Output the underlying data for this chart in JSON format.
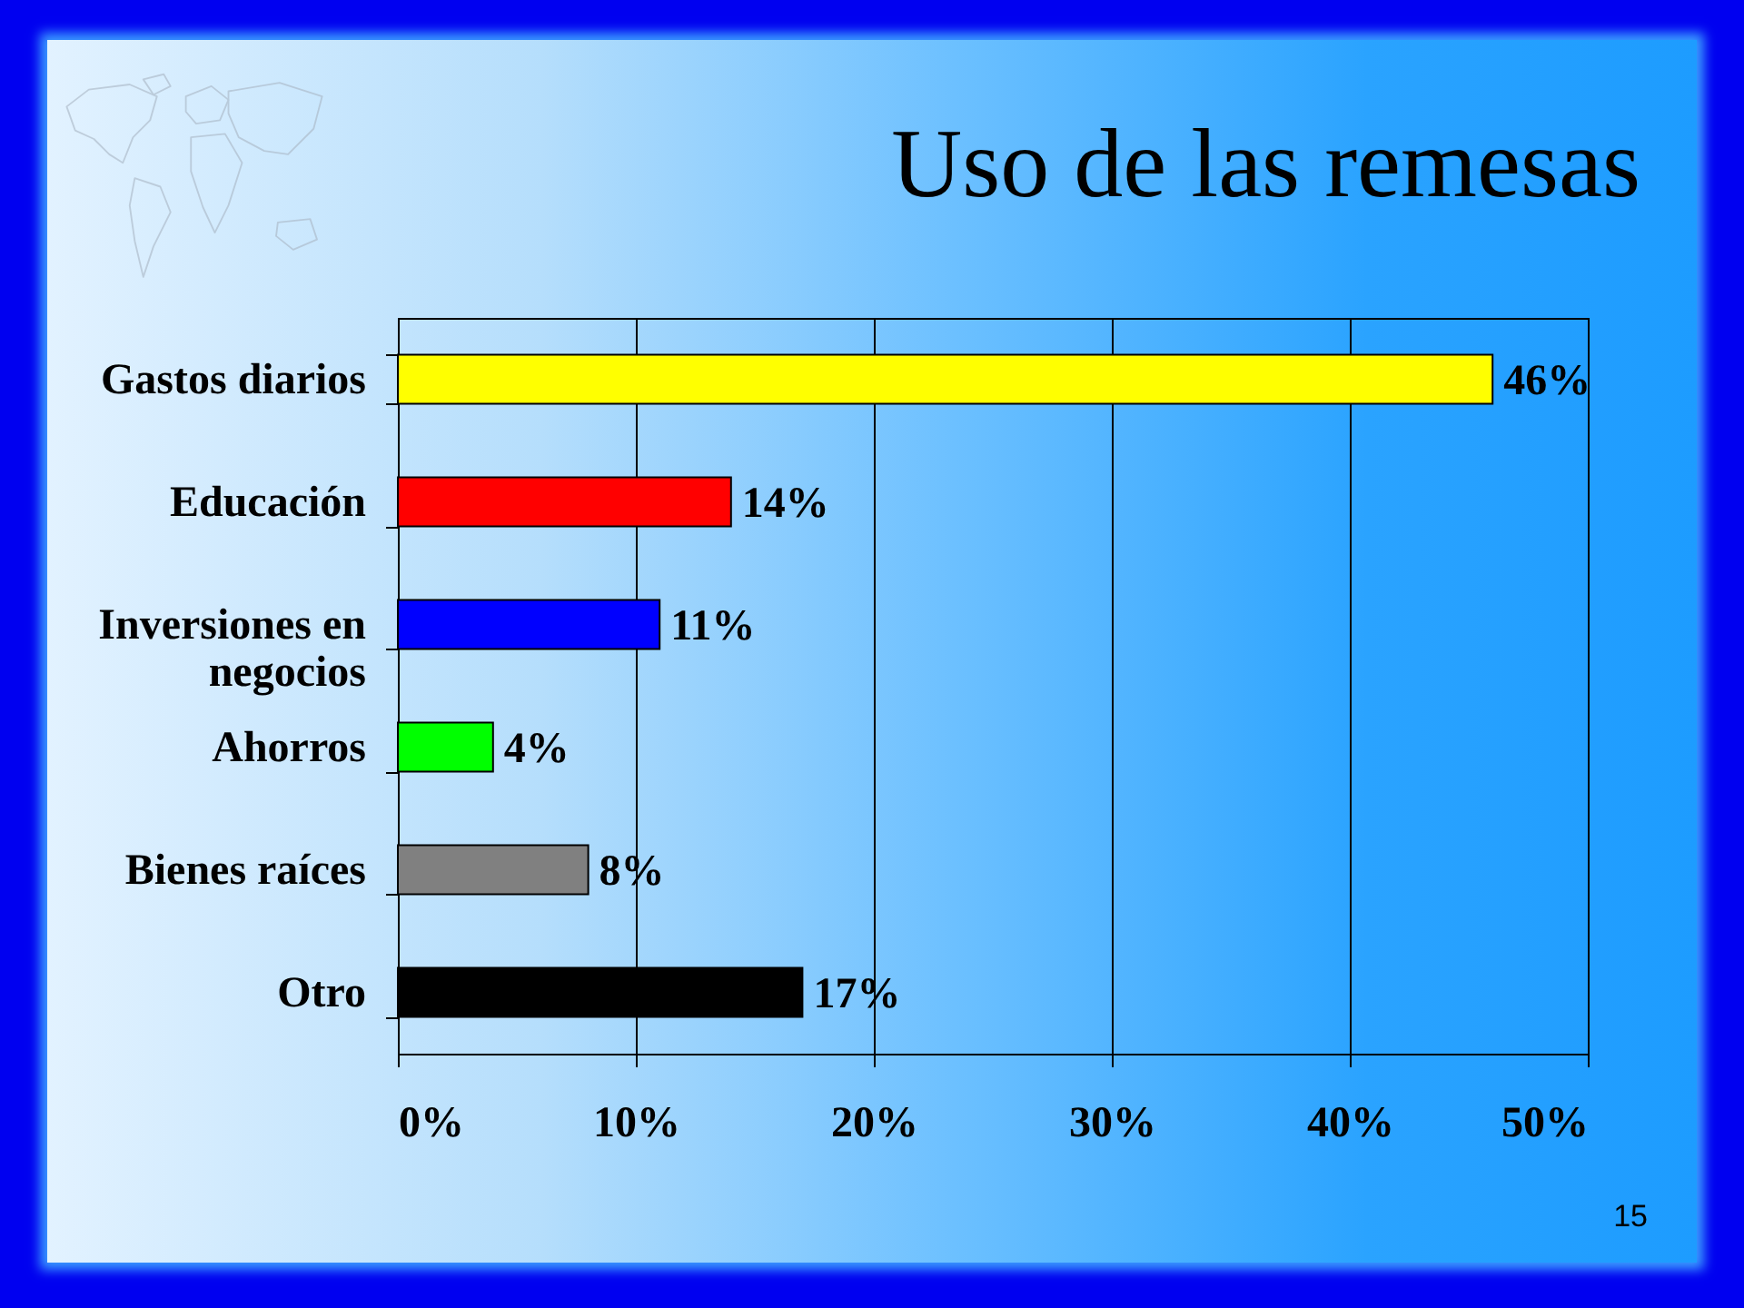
{
  "chart_data": {
    "type": "bar",
    "orientation": "horizontal",
    "title": "Uso de las remesas",
    "categories": [
      "Gastos diarios",
      "Educación",
      "Inversiones en negocios",
      "Ahorros",
      "Bienes raíces",
      "Otro"
    ],
    "values": [
      46,
      14,
      11,
      4,
      8,
      17
    ],
    "colors": [
      "#ffff00",
      "#ff0000",
      "#0000ff",
      "#00ff00",
      "#808080",
      "#000000"
    ],
    "value_labels": [
      "46%",
      "14%",
      "11%",
      "4%",
      "8%",
      "17%"
    ],
    "xlim": [
      0,
      50
    ],
    "xticks": [
      {
        "value": 0,
        "label": "0%"
      },
      {
        "value": 10,
        "label": "10%"
      },
      {
        "value": 20,
        "label": "20%"
      },
      {
        "value": 30,
        "label": "30%"
      },
      {
        "value": 40,
        "label": "40%"
      },
      {
        "value": 50,
        "label": "50%"
      }
    ],
    "grid": "x",
    "annotations": [
      "15"
    ]
  }
}
